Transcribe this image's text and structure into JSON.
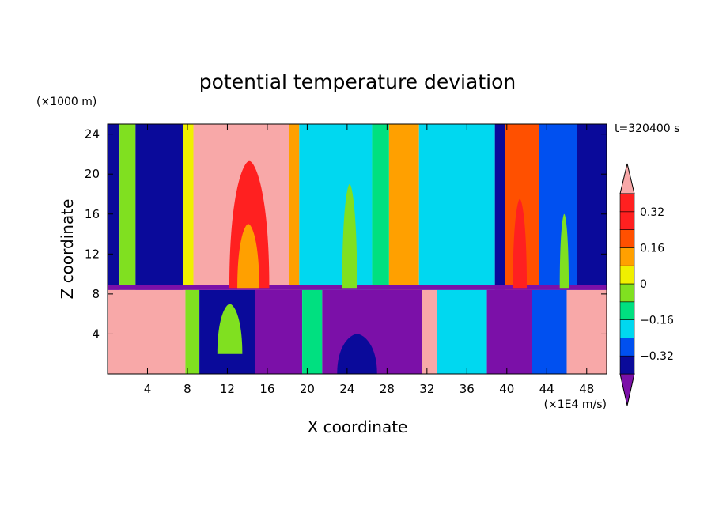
{
  "chart_data": {
    "type": "heatmap",
    "title": "potential temperature deviation",
    "xlabel": "X coordinate",
    "ylabel": "Z coordinate",
    "x_units": "(×1E4 m/s)",
    "y_units": "(×1000 m)",
    "time_label": "t=320400 s",
    "xlim": [
      0,
      50
    ],
    "ylim": [
      0,
      25
    ],
    "x_ticks": [
      4,
      8,
      12,
      16,
      20,
      24,
      28,
      32,
      36,
      40,
      44,
      48
    ],
    "y_ticks": [
      4,
      8,
      12,
      16,
      20,
      24
    ],
    "colorbar": {
      "levels": [
        -0.4,
        -0.32,
        -0.24,
        -0.16,
        -0.08,
        0,
        0.08,
        0.16,
        0.24,
        0.32,
        0.4
      ],
      "tick_labels": [
        "0.32",
        "0.16",
        "0",
        "−0.16",
        "−0.32"
      ],
      "tick_values": [
        0.32,
        0.16,
        0,
        -0.16,
        -0.32
      ],
      "colors": [
        "#7b10a8",
        "#0a0a9a",
        "#0050f0",
        "#00d8f0",
        "#00e080",
        "#80e020",
        "#f0f000",
        "#ffa000",
        "#ff5000",
        "#ff2020",
        "#f8a8a8"
      ]
    },
    "regime_boundary_z": 8.4,
    "upper_columns": [
      {
        "x0": 0,
        "x1": 1.2,
        "level": 1
      },
      {
        "x0": 1.2,
        "x1": 2.8,
        "level": 5
      },
      {
        "x0": 2.8,
        "x1": 7.6,
        "level": 1
      },
      {
        "x0": 7.6,
        "x1": 8.6,
        "level": 6
      },
      {
        "x0": 8.6,
        "x1": 18.2,
        "level": 10
      },
      {
        "x0": 18.2,
        "x1": 19.2,
        "level": 7
      },
      {
        "x0": 19.2,
        "x1": 26.5,
        "level": 3
      },
      {
        "x0": 26.5,
        "x1": 28.2,
        "level": 4
      },
      {
        "x0": 28.2,
        "x1": 31.2,
        "level": 7
      },
      {
        "x0": 31.2,
        "x1": 38.8,
        "level": 3
      },
      {
        "x0": 38.8,
        "x1": 39.8,
        "level": 1
      },
      {
        "x0": 39.8,
        "x1": 43.2,
        "level": 8
      },
      {
        "x0": 43.2,
        "x1": 47,
        "level": 2
      },
      {
        "x0": 47,
        "x1": 50,
        "level": 1
      }
    ],
    "lower_columns": [
      {
        "x0": 0,
        "x1": 7.8,
        "level": 10
      },
      {
        "x0": 7.8,
        "x1": 9.2,
        "level": 5
      },
      {
        "x0": 9.2,
        "x1": 14.8,
        "level": 1
      },
      {
        "x0": 14.8,
        "x1": 19.5,
        "level": 0
      },
      {
        "x0": 19.5,
        "x1": 21.5,
        "level": 4
      },
      {
        "x0": 21.5,
        "x1": 31.5,
        "level": 0
      },
      {
        "x0": 31.5,
        "x1": 33,
        "level": 10
      },
      {
        "x0": 33,
        "x1": 38,
        "level": 3
      },
      {
        "x0": 38,
        "x1": 42.5,
        "level": 0
      },
      {
        "x0": 42.5,
        "x1": 46,
        "level": 2
      },
      {
        "x0": 46,
        "x1": 50,
        "level": 10
      }
    ],
    "features": [
      {
        "name": "plume-core-left",
        "x0": 12.2,
        "x1": 16.2,
        "z0": 8.6,
        "z1": 21.3,
        "level": 9
      },
      {
        "name": "plume-inner-left",
        "x0": 13,
        "x1": 15.2,
        "z0": 8.6,
        "z1": 15,
        "level": 7
      },
      {
        "name": "plume-core-right",
        "x0": 40.6,
        "x1": 42,
        "z0": 8.6,
        "z1": 17.5,
        "level": 9
      },
      {
        "name": "column-center-green",
        "x0": 23.5,
        "x1": 25,
        "z0": 8.6,
        "z1": 19,
        "level": 5
      },
      {
        "name": "column-right-green",
        "x0": 45.3,
        "x1": 46.2,
        "z0": 8.6,
        "z1": 16,
        "level": 5
      },
      {
        "name": "lower-blue-patch",
        "x0": 23,
        "x1": 27,
        "z0": 0,
        "z1": 4,
        "level": 1
      },
      {
        "name": "lower-mixed-band",
        "x0": 11,
        "x1": 13.5,
        "z0": 2,
        "z1": 7,
        "level": 5
      },
      {
        "name": "lower-cyan-streak",
        "x0": 35.5,
        "x1": 37,
        "z0": 0.5,
        "z1": 6.5,
        "level": 3
      }
    ]
  }
}
